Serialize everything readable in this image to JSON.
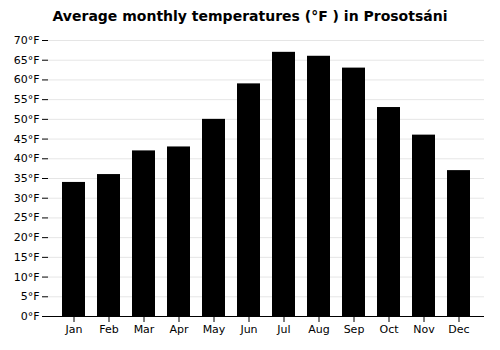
{
  "chart_data": {
    "type": "bar",
    "title": "Average monthly temperatures (°F ) in Prosotsáni",
    "categories": [
      "Jan",
      "Feb",
      "Mar",
      "Apr",
      "May",
      "Jun",
      "Jul",
      "Aug",
      "Sep",
      "Oct",
      "Nov",
      "Dec"
    ],
    "values": [
      34,
      36,
      42,
      43,
      50,
      59,
      67,
      66,
      63,
      53,
      46,
      37
    ],
    "ylim": [
      0,
      70
    ],
    "yticks": [
      {
        "value": 0,
        "label": "0°F"
      },
      {
        "value": 5,
        "label": "5°F"
      },
      {
        "value": 10,
        "label": "10°F"
      },
      {
        "value": 15,
        "label": "15°F"
      },
      {
        "value": 20,
        "label": "20°F"
      },
      {
        "value": 25,
        "label": "25°F"
      },
      {
        "value": 30,
        "label": "30°F"
      },
      {
        "value": 35,
        "label": "35°F"
      },
      {
        "value": 40,
        "label": "40°F"
      },
      {
        "value": 45,
        "label": "45°F"
      },
      {
        "value": 50,
        "label": "50°F"
      },
      {
        "value": 55,
        "label": "55°F"
      },
      {
        "value": 60,
        "label": "60°F"
      },
      {
        "value": 65,
        "label": "65°F"
      },
      {
        "value": 70,
        "label": "70°F"
      }
    ],
    "grid": true
  }
}
